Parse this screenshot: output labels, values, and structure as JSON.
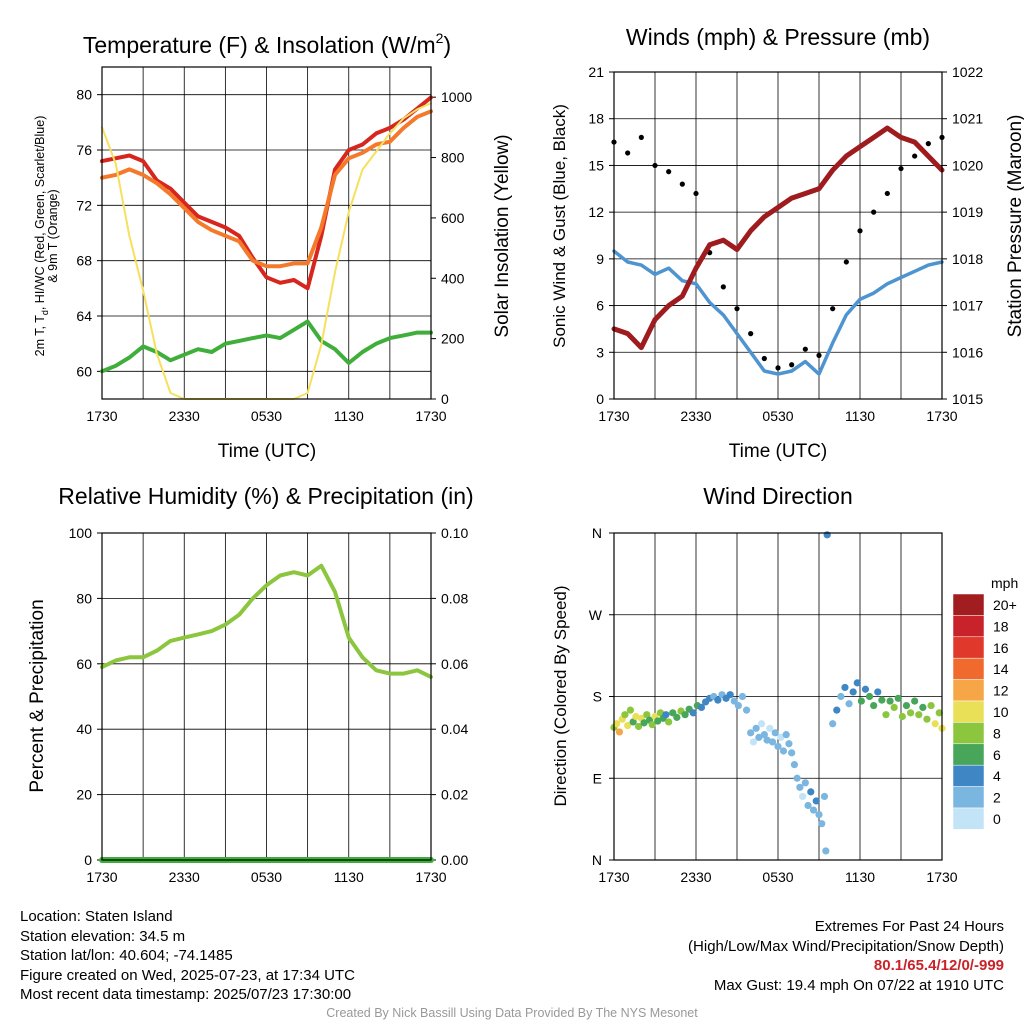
{
  "panels": {
    "temperature": {
      "title_main": "Temperature (F) & Insolation (W/m",
      "title_sup": "2",
      "title_close": ")",
      "ylabel_left_1": "2m T, T",
      "ylabel_left_sub": "d",
      "ylabel_left_2": ", HI/WC (Red, Green, Scarlet/Blue)",
      "ylabel_left_3": "& 9m T (Orange)",
      "ylabel_right": "Solar Insolation (Yellow)",
      "xlabel": "Time (UTC)"
    },
    "winds": {
      "title": "Winds (mph) & Pressure (mb)",
      "ylabel_left": "Sonic Wind & Gust (Blue, Black)",
      "ylabel_right": "Station Pressure (Maroon)",
      "xlabel": "Time (UTC)"
    },
    "humidity": {
      "title": "Relative Humidity (%) & Precipitation (in)",
      "ylabel_left": "Percent & Precipitation"
    },
    "direction": {
      "title": "Wind Direction",
      "ylabel_left": "Direction (Colored By Speed)",
      "legend_title": "mph"
    }
  },
  "chart_data": [
    {
      "id": "temperature",
      "type": "line",
      "x_ticks": [
        "1730",
        "2330",
        "0530",
        "1130",
        "1730"
      ],
      "x": [
        0,
        1,
        2,
        3,
        4,
        5,
        6,
        7,
        8,
        9,
        10,
        11,
        12,
        13,
        14,
        15,
        16,
        17,
        18,
        19,
        20,
        21,
        22,
        23,
        24
      ],
      "y_left_ticks": [
        60,
        64,
        68,
        72,
        76,
        80
      ],
      "ylim_left": [
        58,
        82
      ],
      "y_right_ticks": [
        0,
        200,
        400,
        600,
        800,
        1000
      ],
      "ylim_right": [
        0,
        1100
      ],
      "series": [
        {
          "color": "#d7261e",
          "axis": "left",
          "values": [
            75.2,
            75.4,
            75.6,
            75.2,
            73.8,
            73.2,
            72.2,
            71.2,
            70.8,
            70.4,
            69.8,
            68.2,
            66.8,
            66.4,
            66.6,
            66.0,
            69.8,
            74.6,
            76.0,
            76.4,
            77.2,
            77.6,
            78.2,
            79.0,
            79.8
          ]
        },
        {
          "color": "#f4792a",
          "axis": "left",
          "values": [
            74.0,
            74.2,
            74.6,
            74.2,
            73.6,
            72.8,
            71.8,
            70.8,
            70.2,
            69.8,
            69.4,
            68.0,
            67.6,
            67.6,
            67.8,
            67.8,
            70.4,
            74.2,
            75.4,
            75.8,
            76.4,
            76.6,
            77.6,
            78.4,
            78.8
          ]
        },
        {
          "color": "#3fae3a",
          "axis": "left",
          "values": [
            60.0,
            60.4,
            61.0,
            61.8,
            61.4,
            60.8,
            61.2,
            61.6,
            61.4,
            62.0,
            62.2,
            62.4,
            62.6,
            62.4,
            63.0,
            63.6,
            62.2,
            61.6,
            60.6,
            61.4,
            62.0,
            62.4,
            62.6,
            62.8,
            62.8
          ]
        },
        {
          "color": "#f6e05e",
          "axis": "right",
          "values": [
            900,
            780,
            540,
            360,
            150,
            20,
            0,
            0,
            0,
            0,
            0,
            0,
            0,
            0,
            0,
            20,
            180,
            420,
            620,
            760,
            820,
            880,
            930,
            960,
            980
          ]
        }
      ]
    },
    {
      "id": "winds",
      "type": "line",
      "x_ticks": [
        "1730",
        "2330",
        "0530",
        "1130",
        "1730"
      ],
      "x": [
        0,
        1,
        2,
        3,
        4,
        5,
        6,
        7,
        8,
        9,
        10,
        11,
        12,
        13,
        14,
        15,
        16,
        17,
        18,
        19,
        20,
        21,
        22,
        23,
        24
      ],
      "y_left_ticks": [
        0,
        3,
        6,
        9,
        12,
        15,
        18,
        21
      ],
      "ylim_left": [
        0,
        21
      ],
      "y_right_ticks": [
        1015,
        1016,
        1017,
        1018,
        1019,
        1020,
        1021,
        1022
      ],
      "ylim_right": [
        1015,
        1022
      ],
      "series": [
        {
          "color": "#4d94d0",
          "axis": "left",
          "values": [
            9.5,
            8.8,
            8.6,
            8.0,
            8.4,
            7.6,
            7.4,
            6.2,
            5.4,
            4.2,
            3.0,
            1.8,
            1.6,
            1.8,
            2.4,
            1.6,
            3.6,
            5.4,
            6.4,
            6.8,
            7.4,
            7.8,
            8.2,
            8.6,
            8.8
          ]
        },
        {
          "color": "#000000",
          "axis": "left",
          "style": "dots",
          "values": [
            16.5,
            15.8,
            16.8,
            15.0,
            14.6,
            13.8,
            13.2,
            9.4,
            7.2,
            5.8,
            4.2,
            2.6,
            2.0,
            2.2,
            3.2,
            2.8,
            5.8,
            8.8,
            10.8,
            12.0,
            13.2,
            14.8,
            15.6,
            16.4,
            16.8
          ]
        },
        {
          "color": "#9e1b1e",
          "axis": "right",
          "values": [
            1016.5,
            1016.4,
            1016.1,
            1016.7,
            1017.0,
            1017.2,
            1017.8,
            1018.3,
            1018.4,
            1018.2,
            1018.6,
            1018.9,
            1019.1,
            1019.3,
            1019.4,
            1019.5,
            1019.9,
            1020.2,
            1020.4,
            1020.6,
            1020.8,
            1020.6,
            1020.5,
            1020.2,
            1019.9
          ]
        }
      ]
    },
    {
      "id": "humidity",
      "type": "line",
      "x_ticks": [
        "1730",
        "2330",
        "0530",
        "1130",
        "1730"
      ],
      "x": [
        0,
        1,
        2,
        3,
        4,
        5,
        6,
        7,
        8,
        9,
        10,
        11,
        12,
        13,
        14,
        15,
        16,
        17,
        18,
        19,
        20,
        21,
        22,
        23,
        24
      ],
      "y_left_ticks": [
        0,
        20,
        40,
        60,
        80,
        100
      ],
      "ylim_left": [
        0,
        100
      ],
      "y_right_ticks": [
        "0.00",
        "0.02",
        "0.04",
        "0.06",
        "0.08",
        "0.10"
      ],
      "ylim_right": [
        0,
        0.1
      ],
      "series": [
        {
          "color": "#8cc63f",
          "axis": "left",
          "values": [
            59,
            61,
            62,
            62,
            64,
            67,
            68,
            69,
            70,
            72,
            75,
            80,
            84,
            87,
            88,
            87,
            90,
            82,
            68,
            62,
            58,
            57,
            57,
            58,
            56
          ]
        },
        {
          "color": "#3fae3a",
          "axis": "right",
          "values": [
            0,
            0,
            0,
            0,
            0,
            0,
            0,
            0,
            0,
            0,
            0,
            0,
            0,
            0,
            0,
            0,
            0,
            0,
            0,
            0,
            0,
            0,
            0,
            0,
            0
          ]
        }
      ]
    },
    {
      "id": "direction",
      "type": "scatter",
      "x_ticks": [
        "1730",
        "2330",
        "0530",
        "1130",
        "1730"
      ],
      "y_ticks": [
        "N",
        "E",
        "S",
        "W",
        "N"
      ],
      "ylim": [
        0,
        360
      ],
      "legend": {
        "labels": [
          "20+",
          "18",
          "16",
          "14",
          "12",
          "10",
          "8",
          "6",
          "4",
          "2",
          "0"
        ],
        "colors": [
          "#a11d20",
          "#c8232a",
          "#e0392b",
          "#f06a2d",
          "#f7a647",
          "#e9e058",
          "#8cc63f",
          "#47a65a",
          "#3f86c4",
          "#7ab6e0",
          "#c3e3f7"
        ]
      },
      "points": [
        {
          "x": 0.0,
          "dir": 146,
          "speed": 8
        },
        {
          "x": 0.2,
          "dir": 150,
          "speed": 10
        },
        {
          "x": 0.4,
          "dir": 141,
          "speed": 12
        },
        {
          "x": 0.6,
          "dir": 155,
          "speed": 10
        },
        {
          "x": 0.8,
          "dir": 160,
          "speed": 8
        },
        {
          "x": 1.0,
          "dir": 148,
          "speed": 10
        },
        {
          "x": 1.2,
          "dir": 165,
          "speed": 8
        },
        {
          "x": 1.4,
          "dir": 152,
          "speed": 6
        },
        {
          "x": 1.6,
          "dir": 158,
          "speed": 10
        },
        {
          "x": 1.8,
          "dir": 147,
          "speed": 8
        },
        {
          "x": 2.0,
          "dir": 156,
          "speed": 10
        },
        {
          "x": 2.2,
          "dir": 151,
          "speed": 6
        },
        {
          "x": 2.4,
          "dir": 160,
          "speed": 8
        },
        {
          "x": 2.6,
          "dir": 154,
          "speed": 6
        },
        {
          "x": 2.8,
          "dir": 149,
          "speed": 8
        },
        {
          "x": 3.0,
          "dir": 158,
          "speed": 10
        },
        {
          "x": 3.2,
          "dir": 153,
          "speed": 6
        },
        {
          "x": 3.4,
          "dir": 162,
          "speed": 8
        },
        {
          "x": 3.6,
          "dir": 156,
          "speed": 6
        },
        {
          "x": 3.8,
          "dir": 160,
          "speed": 4
        },
        {
          "x": 4.0,
          "dir": 152,
          "speed": 8
        },
        {
          "x": 4.3,
          "dir": 162,
          "speed": 6
        },
        {
          "x": 4.6,
          "dir": 157,
          "speed": 6
        },
        {
          "x": 4.9,
          "dir": 164,
          "speed": 8
        },
        {
          "x": 5.2,
          "dir": 160,
          "speed": 6
        },
        {
          "x": 5.5,
          "dir": 166,
          "speed": 6
        },
        {
          "x": 5.8,
          "dir": 162,
          "speed": 4
        },
        {
          "x": 6.1,
          "dir": 170,
          "speed": 6
        },
        {
          "x": 6.4,
          "dir": 168,
          "speed": 4
        },
        {
          "x": 6.7,
          "dir": 174,
          "speed": 4
        },
        {
          "x": 7.0,
          "dir": 178,
          "speed": 4
        },
        {
          "x": 7.3,
          "dir": 180,
          "speed": 2
        },
        {
          "x": 7.6,
          "dir": 176,
          "speed": 4
        },
        {
          "x": 7.9,
          "dir": 182,
          "speed": 2
        },
        {
          "x": 8.2,
          "dir": 178,
          "speed": 4
        },
        {
          "x": 8.5,
          "dir": 182,
          "speed": 4
        },
        {
          "x": 8.8,
          "dir": 175,
          "speed": 2
        },
        {
          "x": 9.1,
          "dir": 170,
          "speed": 2
        },
        {
          "x": 9.4,
          "dir": 180,
          "speed": 2
        },
        {
          "x": 9.7,
          "dir": 165,
          "speed": 2
        },
        {
          "x": 10.0,
          "dir": 140,
          "speed": 2
        },
        {
          "x": 10.2,
          "dir": 130,
          "speed": 0
        },
        {
          "x": 10.4,
          "dir": 145,
          "speed": 2
        },
        {
          "x": 10.6,
          "dir": 135,
          "speed": 2
        },
        {
          "x": 10.8,
          "dir": 150,
          "speed": 0
        },
        {
          "x": 11.0,
          "dir": 138,
          "speed": 2
        },
        {
          "x": 11.2,
          "dir": 132,
          "speed": 2
        },
        {
          "x": 11.4,
          "dir": 145,
          "speed": 0
        },
        {
          "x": 11.6,
          "dir": 130,
          "speed": 2
        },
        {
          "x": 11.8,
          "dir": 140,
          "speed": 2
        },
        {
          "x": 12.0,
          "dir": 125,
          "speed": 2
        },
        {
          "x": 12.2,
          "dir": 135,
          "speed": 0
        },
        {
          "x": 12.4,
          "dir": 120,
          "speed": 2
        },
        {
          "x": 12.6,
          "dir": 138,
          "speed": 2
        },
        {
          "x": 12.8,
          "dir": 128,
          "speed": 2
        },
        {
          "x": 13.0,
          "dir": 118,
          "speed": 2
        },
        {
          "x": 13.2,
          "dir": 105,
          "speed": 2
        },
        {
          "x": 13.4,
          "dir": 90,
          "speed": 2
        },
        {
          "x": 13.6,
          "dir": 80,
          "speed": 2
        },
        {
          "x": 13.8,
          "dir": 70,
          "speed": 0
        },
        {
          "x": 14.0,
          "dir": 85,
          "speed": 2
        },
        {
          "x": 14.2,
          "dir": 60,
          "speed": 2
        },
        {
          "x": 14.4,
          "dir": 75,
          "speed": 4
        },
        {
          "x": 14.6,
          "dir": 55,
          "speed": 2
        },
        {
          "x": 14.8,
          "dir": 65,
          "speed": 4
        },
        {
          "x": 15.0,
          "dir": 50,
          "speed": 2
        },
        {
          "x": 15.2,
          "dir": 40,
          "speed": 2
        },
        {
          "x": 15.4,
          "dir": 70,
          "speed": 2
        },
        {
          "x": 15.5,
          "dir": 10,
          "speed": 2
        },
        {
          "x": 15.6,
          "dir": 358,
          "speed": 4
        },
        {
          "x": 16.0,
          "dir": 150,
          "speed": 2
        },
        {
          "x": 16.3,
          "dir": 165,
          "speed": 4
        },
        {
          "x": 16.6,
          "dir": 180,
          "speed": 2
        },
        {
          "x": 16.9,
          "dir": 190,
          "speed": 4
        },
        {
          "x": 17.2,
          "dir": 172,
          "speed": 2
        },
        {
          "x": 17.5,
          "dir": 185,
          "speed": 4
        },
        {
          "x": 17.8,
          "dir": 195,
          "speed": 4
        },
        {
          "x": 18.1,
          "dir": 175,
          "speed": 6
        },
        {
          "x": 18.4,
          "dir": 188,
          "speed": 4
        },
        {
          "x": 18.7,
          "dir": 180,
          "speed": 6
        },
        {
          "x": 19.0,
          "dir": 170,
          "speed": 6
        },
        {
          "x": 19.3,
          "dir": 185,
          "speed": 4
        },
        {
          "x": 19.6,
          "dir": 176,
          "speed": 6
        },
        {
          "x": 19.9,
          "dir": 160,
          "speed": 8
        },
        {
          "x": 20.2,
          "dir": 175,
          "speed": 6
        },
        {
          "x": 20.5,
          "dir": 168,
          "speed": 8
        },
        {
          "x": 20.8,
          "dir": 178,
          "speed": 6
        },
        {
          "x": 21.1,
          "dir": 158,
          "speed": 8
        },
        {
          "x": 21.4,
          "dir": 170,
          "speed": 6
        },
        {
          "x": 21.7,
          "dir": 162,
          "speed": 8
        },
        {
          "x": 22.0,
          "dir": 175,
          "speed": 6
        },
        {
          "x": 22.3,
          "dir": 160,
          "speed": 8
        },
        {
          "x": 22.6,
          "dir": 168,
          "speed": 6
        },
        {
          "x": 22.9,
          "dir": 155,
          "speed": 8
        },
        {
          "x": 23.2,
          "dir": 170,
          "speed": 8
        },
        {
          "x": 23.5,
          "dir": 150,
          "speed": 10
        },
        {
          "x": 23.8,
          "dir": 162,
          "speed": 8
        },
        {
          "x": 24.0,
          "dir": 145,
          "speed": 10
        }
      ]
    }
  ],
  "info": {
    "location": "Location: Staten Island",
    "elevation": "Station elevation: 34.5 m",
    "latlon": "Station lat/lon: 40.604; -74.1485",
    "created": "Figure created on Wed, 2025-07-23, at 17:34 UTC",
    "recent": "Most recent data timestamp: 2025/07/23 17:30:00"
  },
  "extremes": {
    "title": "Extremes For Past 24 Hours",
    "subtitle": "(High/Low/Max Wind/Precipitation/Snow Depth)",
    "values": "80.1/65.4/12/0/-999",
    "max_gust": "Max Gust: 19.4 mph On 07/22 at 1910 UTC"
  },
  "credit": "Created By Nick Bassill Using Data Provided By The NYS Mesonet"
}
